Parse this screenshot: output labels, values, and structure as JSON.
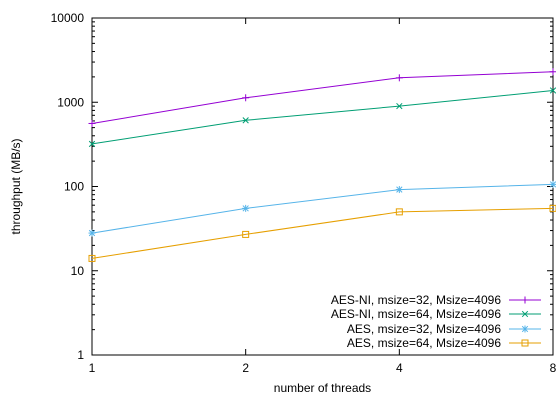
{
  "chart_data": {
    "type": "line",
    "xlabel": "number of threads",
    "ylabel": "throughput (MB/s)",
    "x_scale": "log2",
    "y_scale": "log10",
    "xlim": [
      1,
      8
    ],
    "ylim": [
      1,
      10000
    ],
    "x_ticks": [
      {
        "value": 1,
        "label": "1"
      },
      {
        "value": 2,
        "label": "2"
      },
      {
        "value": 4,
        "label": "4"
      },
      {
        "value": 8,
        "label": "8"
      }
    ],
    "y_ticks": [
      {
        "value": 1,
        "label": "1"
      },
      {
        "value": 10,
        "label": "10"
      },
      {
        "value": 100,
        "label": "100"
      },
      {
        "value": 1000,
        "label": "1000"
      },
      {
        "value": 10000,
        "label": "10000"
      }
    ],
    "legend_position": "bottom-right",
    "grid": false,
    "x": [
      1,
      2,
      4,
      8
    ],
    "series": [
      {
        "name": "AES-NI, msize=32, Msize=4096",
        "values": [
          560,
          1130,
          1950,
          2300
        ],
        "color": "#9400d3",
        "marker": "plus"
      },
      {
        "name": "AES-NI, msize=64, Msize=4096",
        "values": [
          320,
          610,
          900,
          1380
        ],
        "color": "#009e73",
        "marker": "cross"
      },
      {
        "name": "AES, msize=32, Msize=4096",
        "values": [
          28,
          55,
          92,
          106
        ],
        "color": "#56b4e9",
        "marker": "star"
      },
      {
        "name": "AES, msize=64, Msize=4096",
        "values": [
          14,
          27,
          50,
          55
        ],
        "color": "#e69f00",
        "marker": "square"
      }
    ]
  }
}
